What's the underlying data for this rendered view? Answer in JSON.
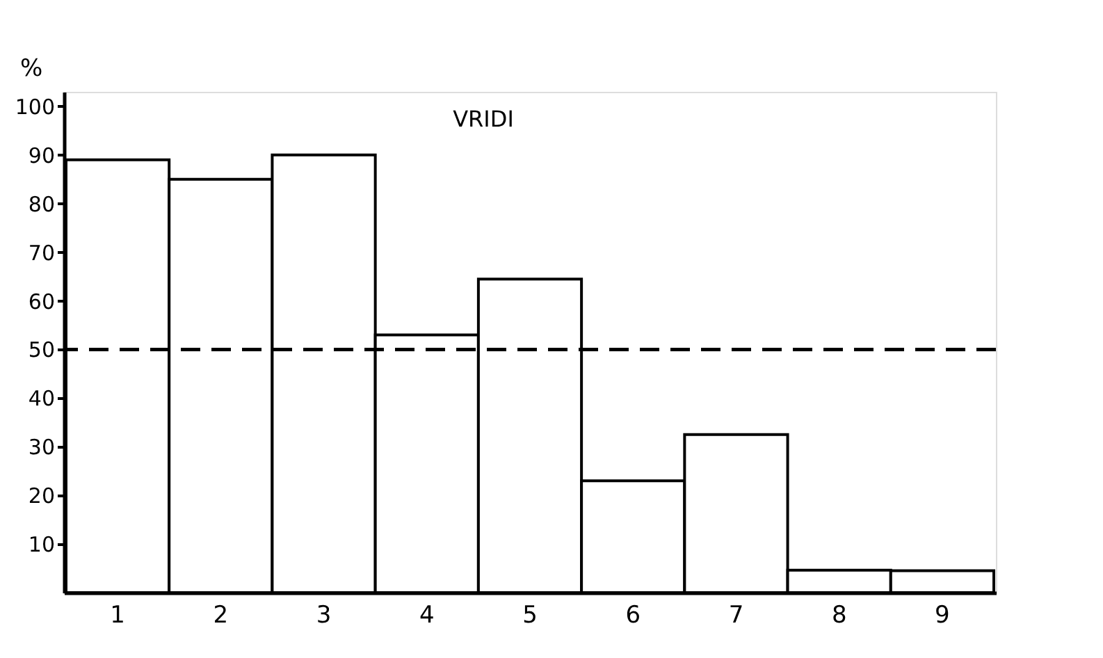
{
  "chart_data": {
    "type": "bar",
    "title": "VRIDI",
    "ylabel": "%",
    "categories": [
      "1",
      "2",
      "3",
      "4",
      "5",
      "6",
      "7",
      "8",
      "9"
    ],
    "values": [
      89,
      85,
      90,
      53,
      64.5,
      23,
      32.5,
      4.6,
      4.5
    ],
    "color": "#ffffff",
    "ylim": [
      0,
      103
    ],
    "yticks": [
      10,
      20,
      30,
      40,
      50,
      60,
      70,
      80,
      90,
      100
    ],
    "ref_lines": [
      {
        "axis": "y",
        "value": 50,
        "label": null,
        "line_style": "dashed",
        "color": "#000000"
      }
    ],
    "grid": false
  }
}
